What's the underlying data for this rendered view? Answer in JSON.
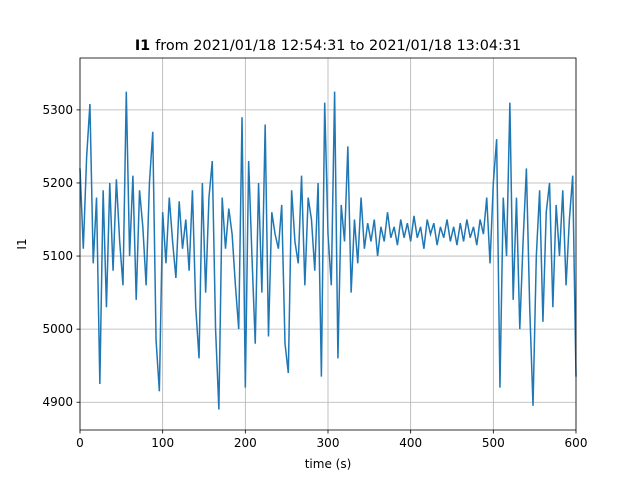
{
  "chart_data": {
    "type": "line",
    "title_bold": "I1",
    "title": "from 2021/01/18 12:54:31 to 2021/01/18 13:04:31",
    "x_label": "time (s)",
    "y_label": "I1",
    "xlim": [
      0,
      600
    ],
    "ylim": [
      4862,
      5371
    ],
    "xticks": [
      0,
      100,
      200,
      300,
      400,
      500,
      600
    ],
    "yticks": [
      4900,
      5000,
      5100,
      5200,
      5300
    ],
    "grid": true,
    "x": [
      0,
      4,
      8,
      12,
      16,
      20,
      24,
      28,
      32,
      36,
      40,
      44,
      48,
      52,
      56,
      60,
      64,
      68,
      72,
      76,
      80,
      84,
      88,
      92,
      96,
      100,
      104,
      108,
      112,
      116,
      120,
      124,
      128,
      132,
      136,
      140,
      144,
      148,
      152,
      156,
      160,
      164,
      168,
      172,
      176,
      180,
      184,
      188,
      192,
      196,
      200,
      204,
      208,
      212,
      216,
      220,
      224,
      228,
      232,
      236,
      240,
      244,
      248,
      252,
      256,
      260,
      264,
      268,
      272,
      276,
      280,
      284,
      288,
      292,
      296,
      300,
      304,
      308,
      312,
      316,
      320,
      324,
      328,
      332,
      336,
      340,
      344,
      348,
      352,
      356,
      360,
      364,
      368,
      372,
      376,
      380,
      384,
      388,
      392,
      396,
      400,
      404,
      408,
      412,
      416,
      420,
      424,
      428,
      432,
      436,
      440,
      444,
      448,
      452,
      456,
      460,
      464,
      468,
      472,
      476,
      480,
      484,
      488,
      492,
      496,
      500,
      504,
      508,
      512,
      516,
      520,
      524,
      528,
      532,
      536,
      540,
      544,
      548,
      552,
      556,
      560,
      564,
      568,
      572,
      576,
      580,
      584,
      588,
      592,
      596,
      600
    ],
    "series": [
      {
        "name": "I1",
        "color": "#1f77b4",
        "values": [
          5220,
          5110,
          5235,
          5308,
          5090,
          5180,
          4925,
          5190,
          5030,
          5200,
          5080,
          5205,
          5120,
          5060,
          5325,
          5100,
          5210,
          5040,
          5190,
          5140,
          5060,
          5200,
          5270,
          4985,
          4915,
          5160,
          5090,
          5180,
          5120,
          5070,
          5175,
          5110,
          5150,
          5080,
          5190,
          5030,
          4960,
          5200,
          5050,
          5180,
          5230,
          5000,
          4890,
          5180,
          5110,
          5165,
          5130,
          5060,
          5000,
          5290,
          4920,
          5230,
          5100,
          4980,
          5200,
          5050,
          5280,
          4990,
          5160,
          5130,
          5110,
          5170,
          4980,
          4940,
          5190,
          5120,
          5090,
          5210,
          5060,
          5180,
          5150,
          5080,
          5200,
          4935,
          5310,
          5130,
          5060,
          5325,
          4960,
          5170,
          5120,
          5250,
          5050,
          5150,
          5090,
          5180,
          5110,
          5145,
          5120,
          5150,
          5100,
          5140,
          5120,
          5160,
          5125,
          5140,
          5115,
          5150,
          5125,
          5145,
          5120,
          5155,
          5125,
          5140,
          5110,
          5150,
          5130,
          5145,
          5115,
          5140,
          5125,
          5150,
          5120,
          5140,
          5115,
          5145,
          5120,
          5150,
          5125,
          5140,
          5115,
          5150,
          5130,
          5180,
          5090,
          5200,
          5260,
          4920,
          5180,
          5100,
          5310,
          5040,
          5180,
          5000,
          5120,
          5220,
          5030,
          4895,
          5100,
          5190,
          5010,
          5160,
          5200,
          5030,
          5170,
          5100,
          5190,
          5060,
          5150,
          5210,
          4935
        ]
      }
    ]
  }
}
